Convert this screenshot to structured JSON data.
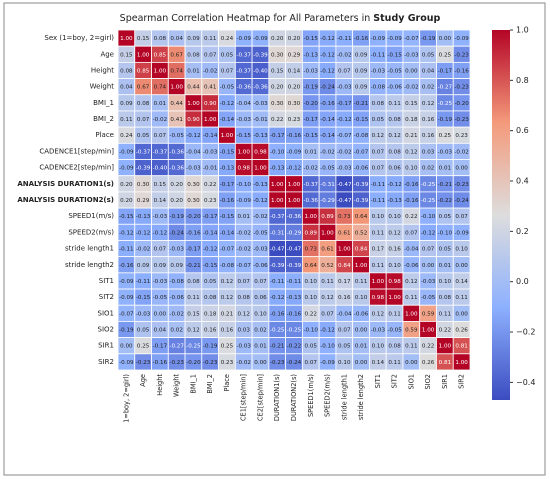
{
  "chart_data": {
    "type": "heatmap",
    "title": "Spearman Correlation Heatmap for All Parameters in",
    "title_bold": "Study Group",
    "rows": [
      "Sex (1=boy, 2=girl)",
      "Age",
      "Height",
      "Weight",
      "BMI_1",
      "BMI_2",
      "Place",
      "CADENCE1[step/min]",
      "CADENCE2[step/min]",
      "ANALYSIS DURATION1(s)",
      "ANALYSIS DURATION2(s)",
      "SPEED1(m/s)",
      "SPEED2(m/s)",
      "stride length1",
      "stride length2",
      "SIT1",
      "SIT2",
      "SIO1",
      "SIO2",
      "SIR1",
      "SIR2"
    ],
    "bold_rows": [
      9,
      10
    ],
    "columns": [
      "1=boy, 2=girl)",
      "Age",
      "Height",
      "Weight",
      "BMI_1",
      "BMI_2",
      "Place",
      "CE1[step/min]",
      "CE2[step/min]",
      "DURATION1(s)",
      "DURATION2(s)",
      "SPEED1(m/s)",
      "SPEED2(m/s)",
      "stride length1",
      "stride length2",
      "SIT1",
      "SIT2",
      "SIO1",
      "SIO2",
      "SIR1",
      "SIR2"
    ],
    "values": [
      [
        1.0,
        0.15,
        0.08,
        0.04,
        0.09,
        0.11,
        0.24,
        -0.09,
        -0.09,
        0.2,
        0.2,
        -0.15,
        -0.12,
        -0.11,
        -0.16,
        -0.09,
        -0.09,
        -0.07,
        -0.19,
        0.0,
        -0.09
      ],
      [
        0.15,
        1.0,
        0.85,
        0.67,
        0.08,
        0.07,
        0.05,
        -0.37,
        -0.39,
        0.3,
        0.29,
        -0.13,
        -0.12,
        -0.02,
        0.09,
        -0.11,
        -0.15,
        -0.03,
        0.05,
        0.25,
        -0.23
      ],
      [
        0.08,
        0.85,
        1.0,
        0.74,
        0.01,
        -0.02,
        0.07,
        -0.37,
        -0.4,
        0.15,
        0.14,
        -0.03,
        -0.12,
        0.07,
        0.09,
        -0.03,
        -0.05,
        0.0,
        0.04,
        -0.17,
        -0.16
      ],
      [
        0.04,
        0.67,
        0.74,
        1.0,
        0.44,
        0.41,
        -0.05,
        -0.36,
        -0.36,
        0.2,
        0.2,
        -0.19,
        -0.24,
        -0.03,
        0.09,
        -0.08,
        -0.06,
        -0.02,
        0.02,
        -0.27,
        -0.23
      ],
      [
        0.09,
        0.08,
        0.01,
        0.44,
        1.0,
        0.9,
        -0.12,
        -0.04,
        -0.03,
        0.3,
        0.3,
        -0.2,
        -0.16,
        -0.17,
        -0.21,
        0.08,
        0.11,
        0.15,
        0.12,
        -0.25,
        -0.2
      ],
      [
        0.11,
        0.07,
        -0.02,
        0.41,
        0.9,
        1.0,
        -0.14,
        -0.03,
        -0.01,
        0.22,
        0.23,
        -0.17,
        -0.14,
        -0.12,
        -0.15,
        0.05,
        0.08,
        0.18,
        0.16,
        -0.19,
        -0.23
      ],
      [
        0.24,
        0.05,
        0.07,
        -0.05,
        -0.12,
        -0.14,
        1.0,
        -0.15,
        -0.13,
        -0.17,
        -0.16,
        -0.15,
        -0.14,
        -0.07,
        -0.08,
        0.12,
        0.12,
        0.21,
        0.16,
        0.25,
        0.23
      ],
      [
        -0.09,
        -0.37,
        -0.37,
        -0.36,
        -0.04,
        -0.03,
        -0.15,
        1.0,
        0.98,
        -0.1,
        -0.09,
        0.01,
        -0.02,
        -0.02,
        -0.07,
        0.07,
        0.08,
        0.12,
        0.03,
        -0.03,
        -0.02
      ],
      [
        -0.09,
        -0.39,
        -0.4,
        -0.36,
        -0.03,
        -0.01,
        -0.13,
        0.98,
        1.0,
        -0.13,
        -0.12,
        -0.02,
        -0.05,
        -0.03,
        -0.06,
        0.07,
        0.06,
        0.1,
        0.02,
        0.01,
        0.0
      ],
      [
        0.2,
        0.3,
        0.15,
        0.2,
        0.3,
        0.22,
        -0.17,
        -0.1,
        -0.13,
        1.0,
        1.0,
        -0.37,
        -0.31,
        -0.47,
        -0.39,
        -0.11,
        -0.12,
        -0.16,
        -0.25,
        -0.21,
        -0.23
      ],
      [
        0.2,
        0.29,
        0.14,
        0.2,
        0.3,
        0.23,
        -0.16,
        -0.09,
        -0.12,
        1.0,
        1.0,
        -0.36,
        -0.29,
        -0.47,
        -0.39,
        -0.11,
        -0.13,
        -0.16,
        -0.25,
        -0.22,
        -0.24
      ],
      [
        -0.15,
        -0.13,
        -0.03,
        -0.19,
        -0.2,
        -0.17,
        -0.15,
        0.01,
        -0.02,
        -0.37,
        -0.36,
        1.0,
        0.89,
        0.73,
        0.64,
        0.1,
        0.1,
        0.22,
        -0.1,
        0.05,
        0.07
      ],
      [
        -0.12,
        -0.12,
        -0.12,
        -0.24,
        -0.16,
        -0.14,
        -0.14,
        -0.02,
        -0.05,
        -0.31,
        -0.29,
        0.89,
        1.0,
        0.61,
        0.52,
        0.11,
        0.12,
        0.07,
        -0.12,
        -0.1,
        -0.09
      ],
      [
        -0.11,
        -0.02,
        0.07,
        -0.03,
        -0.17,
        -0.12,
        -0.07,
        -0.02,
        -0.03,
        -0.47,
        -0.47,
        0.73,
        0.61,
        1.0,
        0.84,
        0.17,
        0.16,
        -0.04,
        0.07,
        0.05,
        0.1
      ],
      [
        -0.16,
        0.09,
        0.09,
        0.09,
        -0.21,
        -0.15,
        -0.08,
        -0.07,
        -0.06,
        -0.39,
        -0.39,
        0.64,
        0.52,
        0.84,
        1.0,
        0.11,
        0.1,
        -0.06,
        0.0,
        0.01,
        0.0
      ],
      [
        -0.09,
        -0.11,
        -0.03,
        -0.08,
        0.08,
        0.05,
        0.12,
        0.07,
        0.07,
        -0.11,
        -0.11,
        0.1,
        0.11,
        0.17,
        0.11,
        1.0,
        0.98,
        0.12,
        -0.03,
        0.1,
        0.14
      ],
      [
        -0.09,
        -0.15,
        -0.05,
        -0.06,
        0.11,
        0.08,
        0.12,
        0.08,
        0.06,
        -0.12,
        -0.13,
        0.1,
        0.12,
        0.16,
        0.1,
        0.98,
        1.0,
        0.11,
        -0.05,
        0.08,
        0.11
      ],
      [
        -0.07,
        -0.03,
        0.0,
        -0.02,
        0.15,
        0.18,
        0.21,
        0.12,
        0.1,
        -0.16,
        -0.16,
        0.22,
        0.07,
        -0.04,
        -0.06,
        0.12,
        0.11,
        1.0,
        0.59,
        0.11,
        0.0
      ],
      [
        -0.19,
        0.05,
        0.04,
        0.02,
        0.12,
        0.16,
        0.16,
        0.03,
        0.02,
        -0.25,
        -0.25,
        -0.1,
        -0.12,
        0.07,
        0.0,
        -0.03,
        -0.05,
        0.59,
        1.0,
        0.22,
        0.26
      ],
      [
        0.0,
        0.25,
        -0.17,
        -0.27,
        -0.25,
        -0.19,
        0.25,
        -0.03,
        0.01,
        -0.21,
        -0.22,
        0.05,
        -0.1,
        0.05,
        0.01,
        0.1,
        0.08,
        0.11,
        0.22,
        1.0,
        0.81
      ],
      [
        -0.09,
        -0.23,
        -0.16,
        -0.23,
        -0.2,
        -0.23,
        0.23,
        -0.02,
        0.0,
        -0.23,
        -0.24,
        0.07,
        -0.09,
        0.1,
        0.0,
        0.14,
        0.11,
        0.0,
        0.26,
        0.81,
        1.0
      ]
    ],
    "value_labels": [
      [
        "1.00",
        "0.15",
        "0.08",
        "0.04",
        "0.09",
        "0.11",
        "0.24",
        "-0.09",
        "-0.09",
        "0.20",
        "0.20",
        "-0.15",
        "-0.12",
        "-0.11",
        "-0.16",
        "-0.09",
        "-0.09",
        "-0.07",
        "-0.19",
        "0.00",
        "-0.09"
      ],
      [
        "0.15",
        "1.00",
        "0.85",
        "0.67",
        "0.08",
        "0.07",
        "0.05",
        "-0.37",
        "-0.39",
        "0.30",
        "0.29",
        "-0.13",
        "-0.12",
        "-0.02",
        "0.09",
        "-0.11",
        "-0.15",
        "-0.03",
        "0.05",
        "0.25",
        "-0.23"
      ],
      [
        "0.08",
        "0.85",
        "1.00",
        "0.74",
        "0.01",
        "-0.02",
        "0.07",
        "-0.37",
        "-0.40",
        "0.15",
        "0.14",
        "-0.03",
        "-0.12",
        "0.07",
        "0.09",
        "-0.03",
        "-0.05",
        "0.00",
        "0.04",
        "-0.17",
        "-0.16"
      ],
      [
        "0.04",
        "0.67",
        "0.74",
        "1.00",
        "0.44",
        "0.41",
        "-0.05",
        "-0.36",
        "-0.36",
        "0.20",
        "0.20",
        "-0.19",
        "-0.24",
        "-0.03",
        "0.09",
        "-0.08",
        "-0.06",
        "-0.02",
        "0.02",
        "-0.27",
        "-0.23"
      ],
      [
        "0.09",
        "0.08",
        "0.01",
        "0.44",
        "1.00",
        "0.90",
        "-0.12",
        "-0.04",
        "-0.03",
        "0.30",
        "0.30",
        "-0.20",
        "-0.16",
        "-0.17",
        "-0.21",
        "0.08",
        "0.11",
        "0.15",
        "0.12",
        "-0.25",
        "-0.20"
      ],
      [
        "0.11",
        "0.07",
        "-0.02",
        "0.41",
        "0.90",
        "1.00",
        "-0.14",
        "-0.03",
        "-0.01",
        "0.22",
        "0.23",
        "-0.17",
        "-0.14",
        "-0.12",
        "-0.15",
        "0.05",
        "0.08",
        "0.18",
        "0.16",
        "-0.19",
        "-0.23"
      ],
      [
        "0.24",
        "0.05",
        "0.07",
        "-0.05",
        "-0.12",
        "-0.14",
        "1.00",
        "-0.15",
        "-0.13",
        "-0.17",
        "-0.16",
        "-0.15",
        "-0.14",
        "-0.07",
        "-0.08",
        "0.12",
        "0.12",
        "0.21",
        "0.16",
        "0.25",
        "0.23"
      ],
      [
        "-0.09",
        "-0.37",
        "-0.37",
        "-0.36",
        "-0.04",
        "-0.03",
        "-0.15",
        "1.00",
        "0.98",
        "-0.10",
        "-0.09",
        "0.01",
        "-0.02",
        "-0.02",
        "-0.07",
        "0.07",
        "0.08",
        "0.12",
        "0.03",
        "-0.03",
        "-0.02"
      ],
      [
        "-0.09",
        "-0.39",
        "-0.40",
        "-0.36",
        "-0.03",
        "-0.01",
        "-0.13",
        "0.98",
        "1.00",
        "-0.13",
        "-0.12",
        "-0.02",
        "-0.05",
        "-0.03",
        "-0.06",
        "0.07",
        "0.06",
        "0.10",
        "0.02",
        "0.01",
        "0.00"
      ],
      [
        "0.20",
        "0.30",
        "0.15",
        "0.20",
        "0.30",
        "0.22",
        "-0.17",
        "-0.10",
        "-0.13",
        "1.00",
        "1.00",
        "-0.37",
        "-0.31",
        "-0.47",
        "-0.39",
        "-0.11",
        "-0.12",
        "-0.16",
        "-0.25",
        "-0.21",
        "-0.23"
      ],
      [
        "0.20",
        "0.29",
        "0.14",
        "0.20",
        "0.30",
        "0.23",
        "-0.16",
        "-0.09",
        "-0.12",
        "1.00",
        "1.00",
        "-0.36",
        "-0.29",
        "-0.47",
        "-0.39",
        "-0.11",
        "-0.13",
        "-0.16",
        "-0.25",
        "-0.22",
        "-0.24"
      ],
      [
        "-0.15",
        "-0.13",
        "-0.03",
        "-0.19",
        "-0.20",
        "-0.17",
        "-0.15",
        "0.01",
        "-0.02",
        "-0.37",
        "-0.36",
        "1.00",
        "0.89",
        "0.73",
        "0.64",
        "0.10",
        "0.10",
        "0.22",
        "-0.10",
        "0.05",
        "0.07"
      ],
      [
        "-0.12",
        "-0.12",
        "-0.12",
        "-0.24",
        "-0.16",
        "-0.14",
        "-0.14",
        "-0.02",
        "-0.05",
        "-0.31",
        "-0.29",
        "0.89",
        "1.00",
        "0.61",
        "0.52",
        "0.11",
        "0.12",
        "0.07",
        "-0.12",
        "-0.10",
        "-0.09"
      ],
      [
        "-0.11",
        "-0.02",
        "0.07",
        "-0.03",
        "-0.17",
        "-0.12",
        "-0.07",
        "-0.02",
        "-0.03",
        "-0.47",
        "-0.47",
        "0.73",
        "0.61",
        "1.00",
        "0.84",
        "0.17",
        "0.16",
        "-0.04",
        "0.07",
        "0.05",
        "0.10"
      ],
      [
        "-0.16",
        "0.09",
        "0.09",
        "0.09",
        "-0.21",
        "-0.15",
        "-0.08",
        "-0.07",
        "-0.06",
        "-0.39",
        "-0.39",
        "0.64",
        "0.52",
        "0.84",
        "1.00",
        "0.11",
        "0.10",
        "-0.06",
        "0.00",
        "0.01",
        "0.00"
      ],
      [
        "-0.09",
        "-0.11",
        "-0.03",
        "-0.08",
        "0.08",
        "0.05",
        "0.12",
        "0.07",
        "0.07",
        "-0.11",
        "-0.11",
        "0.10",
        "0.11",
        "0.17",
        "0.11",
        "1.00",
        "0.98",
        "0.12",
        "-0.03",
        "0.10",
        "0.14"
      ],
      [
        "-0.09",
        "-0.15",
        "-0.05",
        "-0.06",
        "0.11",
        "0.08",
        "0.12",
        "0.08",
        "0.06",
        "-0.12",
        "-0.13",
        "0.10",
        "0.12",
        "0.16",
        "0.10",
        "0.98",
        "1.00",
        "0.11",
        "-0.05",
        "0.08",
        "0.11"
      ],
      [
        "-0.07",
        "-0.03",
        "0.00",
        "-0.02",
        "0.15",
        "0.18",
        "0.21",
        "0.12",
        "0.10",
        "-0.16",
        "-0.16",
        "0.22",
        "0.07",
        "-0.04",
        "-0.06",
        "0.12",
        "0.11",
        "1.00",
        "0.59",
        "0.11",
        "0.00"
      ],
      [
        "-0.19",
        "0.05",
        "0.04",
        "0.02",
        "0.12",
        "0.16",
        "0.16",
        "0.03",
        "0.02",
        "-0.25",
        "-0.25",
        "-0.10",
        "-0.12",
        "0.07",
        "0.00",
        "-0.03",
        "-0.05",
        "0.59",
        "1.00",
        "0.22",
        "0.26"
      ],
      [
        "0.00",
        "0.25",
        "-0.17",
        "-0.27",
        "-0.25",
        "-0.19",
        "0.25",
        "-0.03",
        "0.01",
        "-0.21",
        "-0.22",
        "0.05",
        "-0.10",
        "0.05",
        "0.01",
        "0.10",
        "0.08",
        "0.11",
        "0.22",
        "1.00",
        "0.81"
      ],
      [
        "-0.09",
        "-0.23",
        "-0.16",
        "-0.23",
        "-0.20",
        "-0.23",
        "0.23",
        "-0.02",
        "0.00",
        "-0.23",
        "-0.24",
        "0.07",
        "-0.09",
        "0.10",
        "0.00",
        "0.14",
        "0.11",
        "0.00",
        "0.26",
        "0.81",
        "1.00"
      ]
    ],
    "zlim": [
      -0.47,
      1.0
    ],
    "zticks": [
      {
        "value": 1.0,
        "label": "1.0"
      },
      {
        "value": 0.8,
        "label": "0.8"
      },
      {
        "value": 0.6,
        "label": "0.6"
      },
      {
        "value": 0.4,
        "label": "0.4"
      },
      {
        "value": 0.2,
        "label": "0.2"
      },
      {
        "value": 0.0,
        "label": "0.0"
      },
      {
        "value": -0.2,
        "label": "−0.2"
      },
      {
        "value": -0.4,
        "label": "−0.4"
      }
    ],
    "colormap": [
      "#3b4cc0",
      "#8db0fe",
      "#dddddd",
      "#f49a7b",
      "#b40426"
    ]
  }
}
